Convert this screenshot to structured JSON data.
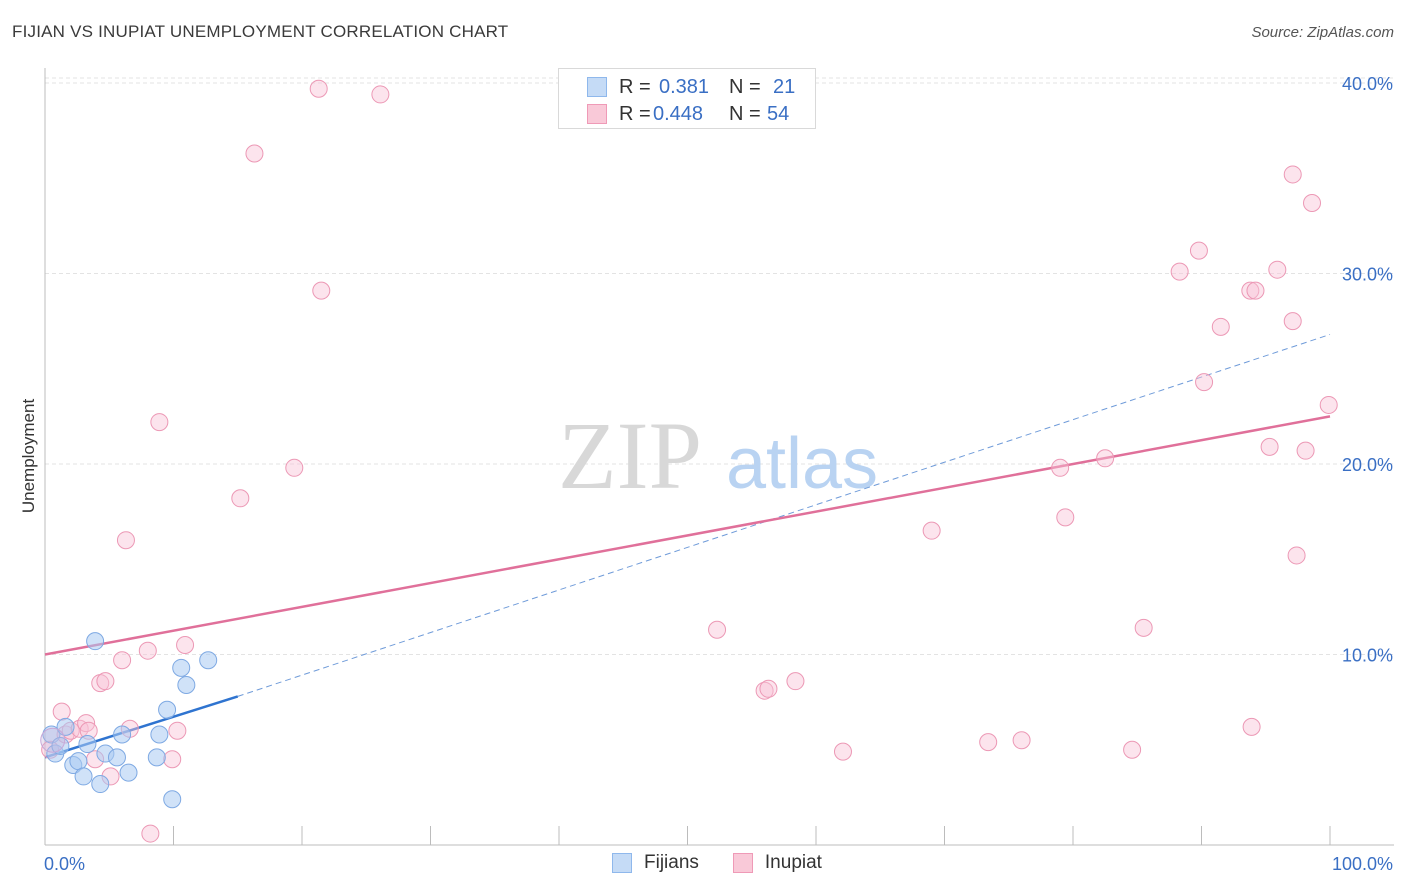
{
  "header": {
    "title": "FIJIAN VS INUPIAT UNEMPLOYMENT CORRELATION CHART",
    "source": "Source: ZipAtlas.com"
  },
  "watermark": {
    "zip": "ZIP",
    "atlas": "atlas"
  },
  "stats": {
    "r_label": "R =",
    "n_label": "N =",
    "fijians": {
      "r": "0.381",
      "n": "21",
      "color": "#8fb8ec",
      "fill": "#c5dbf6"
    },
    "inupiat": {
      "r": "0.448",
      "n": "54",
      "color": "#ef9ab7",
      "fill": "#f9c9d8"
    }
  },
  "legend": {
    "fijians": "Fijians",
    "inupiat": "Inupiat"
  },
  "chart_data": {
    "type": "scatter",
    "ylabel": "Unemployment",
    "xlabel": "",
    "xlim": [
      0,
      100
    ],
    "ylim": [
      0,
      42
    ],
    "x_tick_labels": [
      "0.0%",
      "100.0%"
    ],
    "y_ticks": [
      10,
      20,
      30,
      40
    ],
    "y_tick_labels": [
      "10.0%",
      "20.0%",
      "30.0%",
      "40.0%"
    ],
    "grid": true,
    "series": [
      {
        "name": "Fijians",
        "color": "#3a7bd5",
        "points": [
          [
            0.5,
            5.8
          ],
          [
            0.8,
            4.8
          ],
          [
            1.2,
            5.2
          ],
          [
            1.6,
            6.2
          ],
          [
            2.2,
            4.2
          ],
          [
            2.6,
            4.4
          ],
          [
            3.0,
            3.6
          ],
          [
            3.3,
            5.3
          ],
          [
            3.9,
            10.7
          ],
          [
            4.3,
            3.2
          ],
          [
            4.7,
            4.8
          ],
          [
            5.6,
            4.6
          ],
          [
            6.0,
            5.8
          ],
          [
            6.5,
            3.8
          ],
          [
            8.7,
            4.6
          ],
          [
            8.9,
            5.8
          ],
          [
            9.5,
            7.1
          ],
          [
            9.9,
            2.4
          ],
          [
            10.6,
            9.3
          ],
          [
            11.0,
            8.4
          ],
          [
            12.7,
            9.7
          ]
        ],
        "trend": {
          "x0": 0,
          "y0": 4.6,
          "x1": 15,
          "y1": 7.8,
          "dash_x1": 100,
          "dash_y1": 26.8
        }
      },
      {
        "name": "Inupiat",
        "color": "#e0709a",
        "points": [
          [
            0.4,
            5.0
          ],
          [
            1.3,
            7.0
          ],
          [
            1.6,
            5.8
          ],
          [
            2.0,
            6.0
          ],
          [
            2.7,
            6.1
          ],
          [
            3.2,
            6.4
          ],
          [
            3.4,
            6.0
          ],
          [
            3.9,
            4.5
          ],
          [
            4.3,
            8.5
          ],
          [
            4.7,
            8.6
          ],
          [
            5.1,
            3.6
          ],
          [
            6.0,
            9.7
          ],
          [
            6.3,
            16.0
          ],
          [
            6.6,
            6.1
          ],
          [
            8.0,
            10.2
          ],
          [
            8.2,
            0.6
          ],
          [
            8.9,
            22.2
          ],
          [
            9.9,
            4.5
          ],
          [
            10.3,
            6.0
          ],
          [
            10.9,
            10.5
          ],
          [
            15.2,
            18.2
          ],
          [
            16.3,
            36.3
          ],
          [
            19.4,
            19.8
          ],
          [
            21.3,
            39.7
          ],
          [
            21.5,
            29.1
          ],
          [
            26.1,
            39.4
          ],
          [
            52.3,
            11.3
          ],
          [
            56.0,
            8.1
          ],
          [
            56.3,
            8.2
          ],
          [
            58.4,
            8.6
          ],
          [
            62.1,
            4.9
          ],
          [
            69.0,
            16.5
          ],
          [
            73.4,
            5.4
          ],
          [
            76.0,
            5.5
          ],
          [
            79.0,
            19.8
          ],
          [
            79.4,
            17.2
          ],
          [
            82.5,
            20.3
          ],
          [
            84.6,
            5.0
          ],
          [
            85.5,
            11.4
          ],
          [
            88.3,
            30.1
          ],
          [
            89.8,
            31.2
          ],
          [
            90.2,
            24.3
          ],
          [
            91.5,
            27.2
          ],
          [
            93.8,
            29.1
          ],
          [
            94.2,
            29.1
          ],
          [
            93.9,
            6.2
          ],
          [
            95.3,
            20.9
          ],
          [
            95.9,
            30.2
          ],
          [
            97.1,
            27.5
          ],
          [
            97.1,
            35.2
          ],
          [
            97.4,
            15.2
          ],
          [
            98.1,
            20.7
          ],
          [
            98.6,
            33.7
          ],
          [
            99.9,
            23.1
          ]
        ],
        "trend": {
          "x0": 0,
          "y0": 10.0,
          "x1": 100,
          "y1": 22.5
        }
      }
    ]
  }
}
